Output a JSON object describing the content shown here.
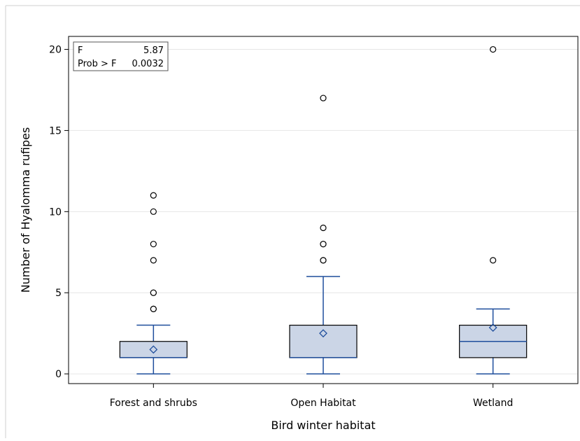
{
  "chart_data": {
    "type": "box",
    "title": "",
    "xlabel": "Bird winter habitat",
    "ylabel": "Number of Hyalomma rufipes",
    "ylim": [
      -0.6,
      20.8
    ],
    "yticks": [
      0,
      5,
      10,
      15,
      20
    ],
    "grid": true,
    "categories": [
      "Forest and shrubs",
      "Open Habitat",
      "Wetland"
    ],
    "boxes": [
      {
        "min": 0,
        "q1": 1,
        "median": 1,
        "q3": 2,
        "max": 3,
        "mean": 1.5,
        "outliers": [
          4,
          4,
          5,
          5,
          7,
          8,
          10,
          11
        ]
      },
      {
        "min": 0,
        "q1": 1,
        "median": 1,
        "q3": 3,
        "max": 6,
        "mean": 2.5,
        "outliers": [
          7,
          7,
          8,
          8,
          9,
          17
        ]
      },
      {
        "min": 0,
        "q1": 1,
        "median": 2,
        "q3": 3,
        "max": 4,
        "mean": 2.85,
        "outliers": [
          7,
          20
        ]
      }
    ],
    "annotation": {
      "rows": [
        {
          "label": "F",
          "value": "5.87"
        },
        {
          "label": "Prob > F",
          "value": "0.0032"
        }
      ]
    },
    "colors": {
      "box_fill": "#cbd5e6",
      "box_stroke": "#000000",
      "whisker": "#1f4e9c",
      "outlier": "#000000",
      "grid": "#e6e6e6"
    }
  }
}
